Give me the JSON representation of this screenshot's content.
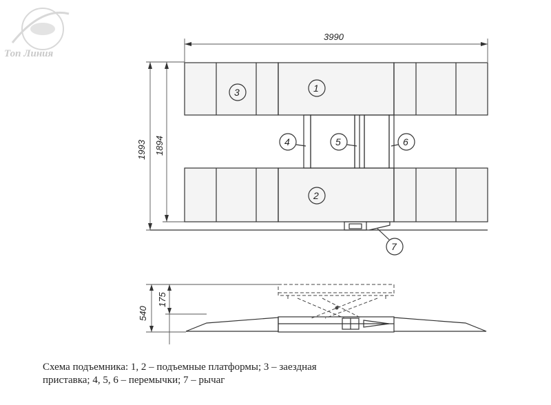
{
  "logo": {
    "text": "Топ Линия",
    "color": "#cfcfcf"
  },
  "dimensions": {
    "overall_length": "3990",
    "overall_width": "1993",
    "platform_width": "1894",
    "total_height": "540",
    "lift_height": "175"
  },
  "callouts": [
    "1",
    "2",
    "3",
    "4",
    "5",
    "6",
    "7"
  ],
  "caption": {
    "line1": "Схема подъемника:  1, 2 – подъемные  платформы; 3 – заездная",
    "line2": "приставка; 4, 5, 6 – перемычки;  7 – рычаг"
  }
}
